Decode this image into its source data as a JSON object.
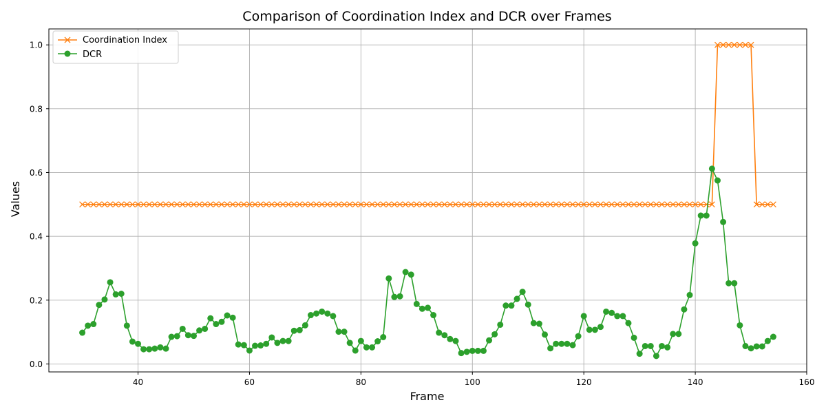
{
  "chart_data": {
    "type": "line",
    "title": "Comparison of Coordination Index and DCR over Frames",
    "xlabel": "Frame",
    "ylabel": "Values",
    "xlim": [
      24,
      160
    ],
    "ylim": [
      -0.025,
      1.05
    ],
    "x_ticks": [
      40,
      60,
      80,
      100,
      120,
      140,
      160
    ],
    "y_ticks": [
      0.0,
      0.2,
      0.4,
      0.6,
      0.8,
      1.0
    ],
    "x_tick_labels": [
      "40",
      "60",
      "80",
      "100",
      "120",
      "140",
      "160"
    ],
    "y_tick_labels": [
      "0.0",
      "0.2",
      "0.4",
      "0.6",
      "0.8",
      "1.0"
    ],
    "grid": true,
    "legend_position": "top-left",
    "x": [
      30,
      31,
      32,
      33,
      34,
      35,
      36,
      37,
      38,
      39,
      40,
      41,
      42,
      43,
      44,
      45,
      46,
      47,
      48,
      49,
      50,
      51,
      52,
      53,
      54,
      55,
      56,
      57,
      58,
      59,
      60,
      61,
      62,
      63,
      64,
      65,
      66,
      67,
      68,
      69,
      70,
      71,
      72,
      73,
      74,
      75,
      76,
      77,
      78,
      79,
      80,
      81,
      82,
      83,
      84,
      85,
      86,
      87,
      88,
      89,
      90,
      91,
      92,
      93,
      94,
      95,
      96,
      97,
      98,
      99,
      100,
      101,
      102,
      103,
      104,
      105,
      106,
      107,
      108,
      109,
      110,
      111,
      112,
      113,
      114,
      115,
      116,
      117,
      118,
      119,
      120,
      121,
      122,
      123,
      124,
      125,
      126,
      127,
      128,
      129,
      130,
      131,
      132,
      133,
      134,
      135,
      136,
      137,
      138,
      139,
      140,
      141,
      142,
      143,
      144,
      145,
      146,
      147,
      148,
      149,
      150,
      151,
      152,
      153,
      154
    ],
    "series": [
      {
        "name": "Coordination Index",
        "color": "#ff7f0e",
        "marker": "x",
        "values": [
          0.5,
          0.5,
          0.5,
          0.5,
          0.5,
          0.5,
          0.5,
          0.5,
          0.5,
          0.5,
          0.5,
          0.5,
          0.5,
          0.5,
          0.5,
          0.5,
          0.5,
          0.5,
          0.5,
          0.5,
          0.5,
          0.5,
          0.5,
          0.5,
          0.5,
          0.5,
          0.5,
          0.5,
          0.5,
          0.5,
          0.5,
          0.5,
          0.5,
          0.5,
          0.5,
          0.5,
          0.5,
          0.5,
          0.5,
          0.5,
          0.5,
          0.5,
          0.5,
          0.5,
          0.5,
          0.5,
          0.5,
          0.5,
          0.5,
          0.5,
          0.5,
          0.5,
          0.5,
          0.5,
          0.5,
          0.5,
          0.5,
          0.5,
          0.5,
          0.5,
          0.5,
          0.5,
          0.5,
          0.5,
          0.5,
          0.5,
          0.5,
          0.5,
          0.5,
          0.5,
          0.5,
          0.5,
          0.5,
          0.5,
          0.5,
          0.5,
          0.5,
          0.5,
          0.5,
          0.5,
          0.5,
          0.5,
          0.5,
          0.5,
          0.5,
          0.5,
          0.5,
          0.5,
          0.5,
          0.5,
          0.5,
          0.5,
          0.5,
          0.5,
          0.5,
          0.5,
          0.5,
          0.5,
          0.5,
          0.5,
          0.5,
          0.5,
          0.5,
          0.5,
          0.5,
          0.5,
          0.5,
          0.5,
          0.5,
          0.5,
          0.5,
          0.5,
          0.5,
          0.5,
          1.0,
          1.0,
          1.0,
          1.0,
          1.0,
          1.0,
          1.0,
          0.5,
          0.5,
          0.5,
          0.5
        ]
      },
      {
        "name": "DCR",
        "color": "#2ca02c",
        "marker": "o",
        "values": [
          0.098,
          0.12,
          0.125,
          0.185,
          0.202,
          0.256,
          0.218,
          0.22,
          0.12,
          0.07,
          0.063,
          0.046,
          0.046,
          0.048,
          0.052,
          0.048,
          0.085,
          0.087,
          0.11,
          0.09,
          0.088,
          0.105,
          0.11,
          0.143,
          0.125,
          0.132,
          0.152,
          0.145,
          0.061,
          0.059,
          0.042,
          0.057,
          0.058,
          0.063,
          0.083,
          0.066,
          0.072,
          0.072,
          0.104,
          0.106,
          0.121,
          0.153,
          0.158,
          0.164,
          0.158,
          0.15,
          0.101,
          0.101,
          0.066,
          0.042,
          0.072,
          0.052,
          0.052,
          0.071,
          0.084,
          0.268,
          0.21,
          0.212,
          0.288,
          0.28,
          0.188,
          0.173,
          0.176,
          0.153,
          0.098,
          0.09,
          0.078,
          0.072,
          0.034,
          0.038,
          0.041,
          0.041,
          0.041,
          0.074,
          0.093,
          0.123,
          0.183,
          0.183,
          0.204,
          0.226,
          0.186,
          0.128,
          0.126,
          0.092,
          0.049,
          0.063,
          0.063,
          0.063,
          0.059,
          0.087,
          0.15,
          0.107,
          0.107,
          0.116,
          0.164,
          0.16,
          0.15,
          0.15,
          0.128,
          0.082,
          0.032,
          0.056,
          0.056,
          0.025,
          0.056,
          0.052,
          0.094,
          0.094,
          0.171,
          0.216,
          0.378,
          0.465,
          0.465,
          0.612,
          0.575,
          0.445,
          0.253,
          0.253,
          0.121,
          0.056,
          0.049,
          0.055,
          0.055,
          0.072,
          0.085
        ]
      }
    ]
  }
}
